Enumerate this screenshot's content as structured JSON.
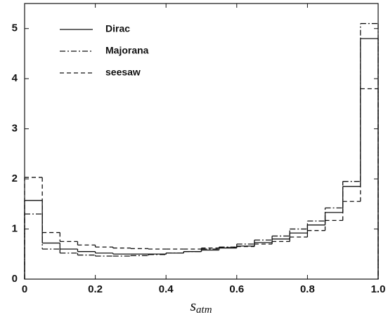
{
  "chart_data": {
    "type": "step-histogram",
    "xlabel": "s",
    "xlabel_sub": "atm",
    "bins": [
      0,
      0.05,
      0.1,
      0.15,
      0.2,
      0.25,
      0.3,
      0.35,
      0.4,
      0.45,
      0.5,
      0.55,
      0.6,
      0.65,
      0.7,
      0.75,
      0.8,
      0.85,
      0.9,
      0.95,
      1
    ],
    "series": [
      {
        "name": "Dirac",
        "color": "#111111",
        "dash": "",
        "values": [
          1.57,
          0.72,
          0.6,
          0.55,
          0.52,
          0.5,
          0.5,
          0.5,
          0.52,
          0.55,
          0.58,
          0.62,
          0.66,
          0.73,
          0.8,
          0.92,
          1.08,
          1.33,
          1.85,
          4.8
        ]
      },
      {
        "name": "Majorana",
        "color": "#111111",
        "dash": "8 3 2 3",
        "values": [
          1.3,
          0.6,
          0.52,
          0.48,
          0.46,
          0.46,
          0.47,
          0.49,
          0.52,
          0.55,
          0.6,
          0.64,
          0.7,
          0.78,
          0.86,
          1.0,
          1.16,
          1.42,
          1.95,
          5.1
        ]
      },
      {
        "name": "seesaw",
        "color": "#111111",
        "dash": "6 4",
        "values": [
          2.03,
          0.93,
          0.75,
          0.68,
          0.64,
          0.62,
          0.61,
          0.6,
          0.6,
          0.6,
          0.62,
          0.63,
          0.65,
          0.7,
          0.75,
          0.84,
          0.97,
          1.17,
          1.55,
          3.8
        ]
      }
    ],
    "xlim": [
      0,
      1
    ],
    "ylim": [
      0,
      5.5
    ],
    "xticks": [
      0,
      0.2,
      0.4,
      0.6,
      0.8,
      {
        "value": 1,
        "label": "1.0"
      }
    ],
    "yticks": [
      0,
      1,
      2,
      3,
      4,
      5
    ],
    "legend": "upper-left"
  }
}
